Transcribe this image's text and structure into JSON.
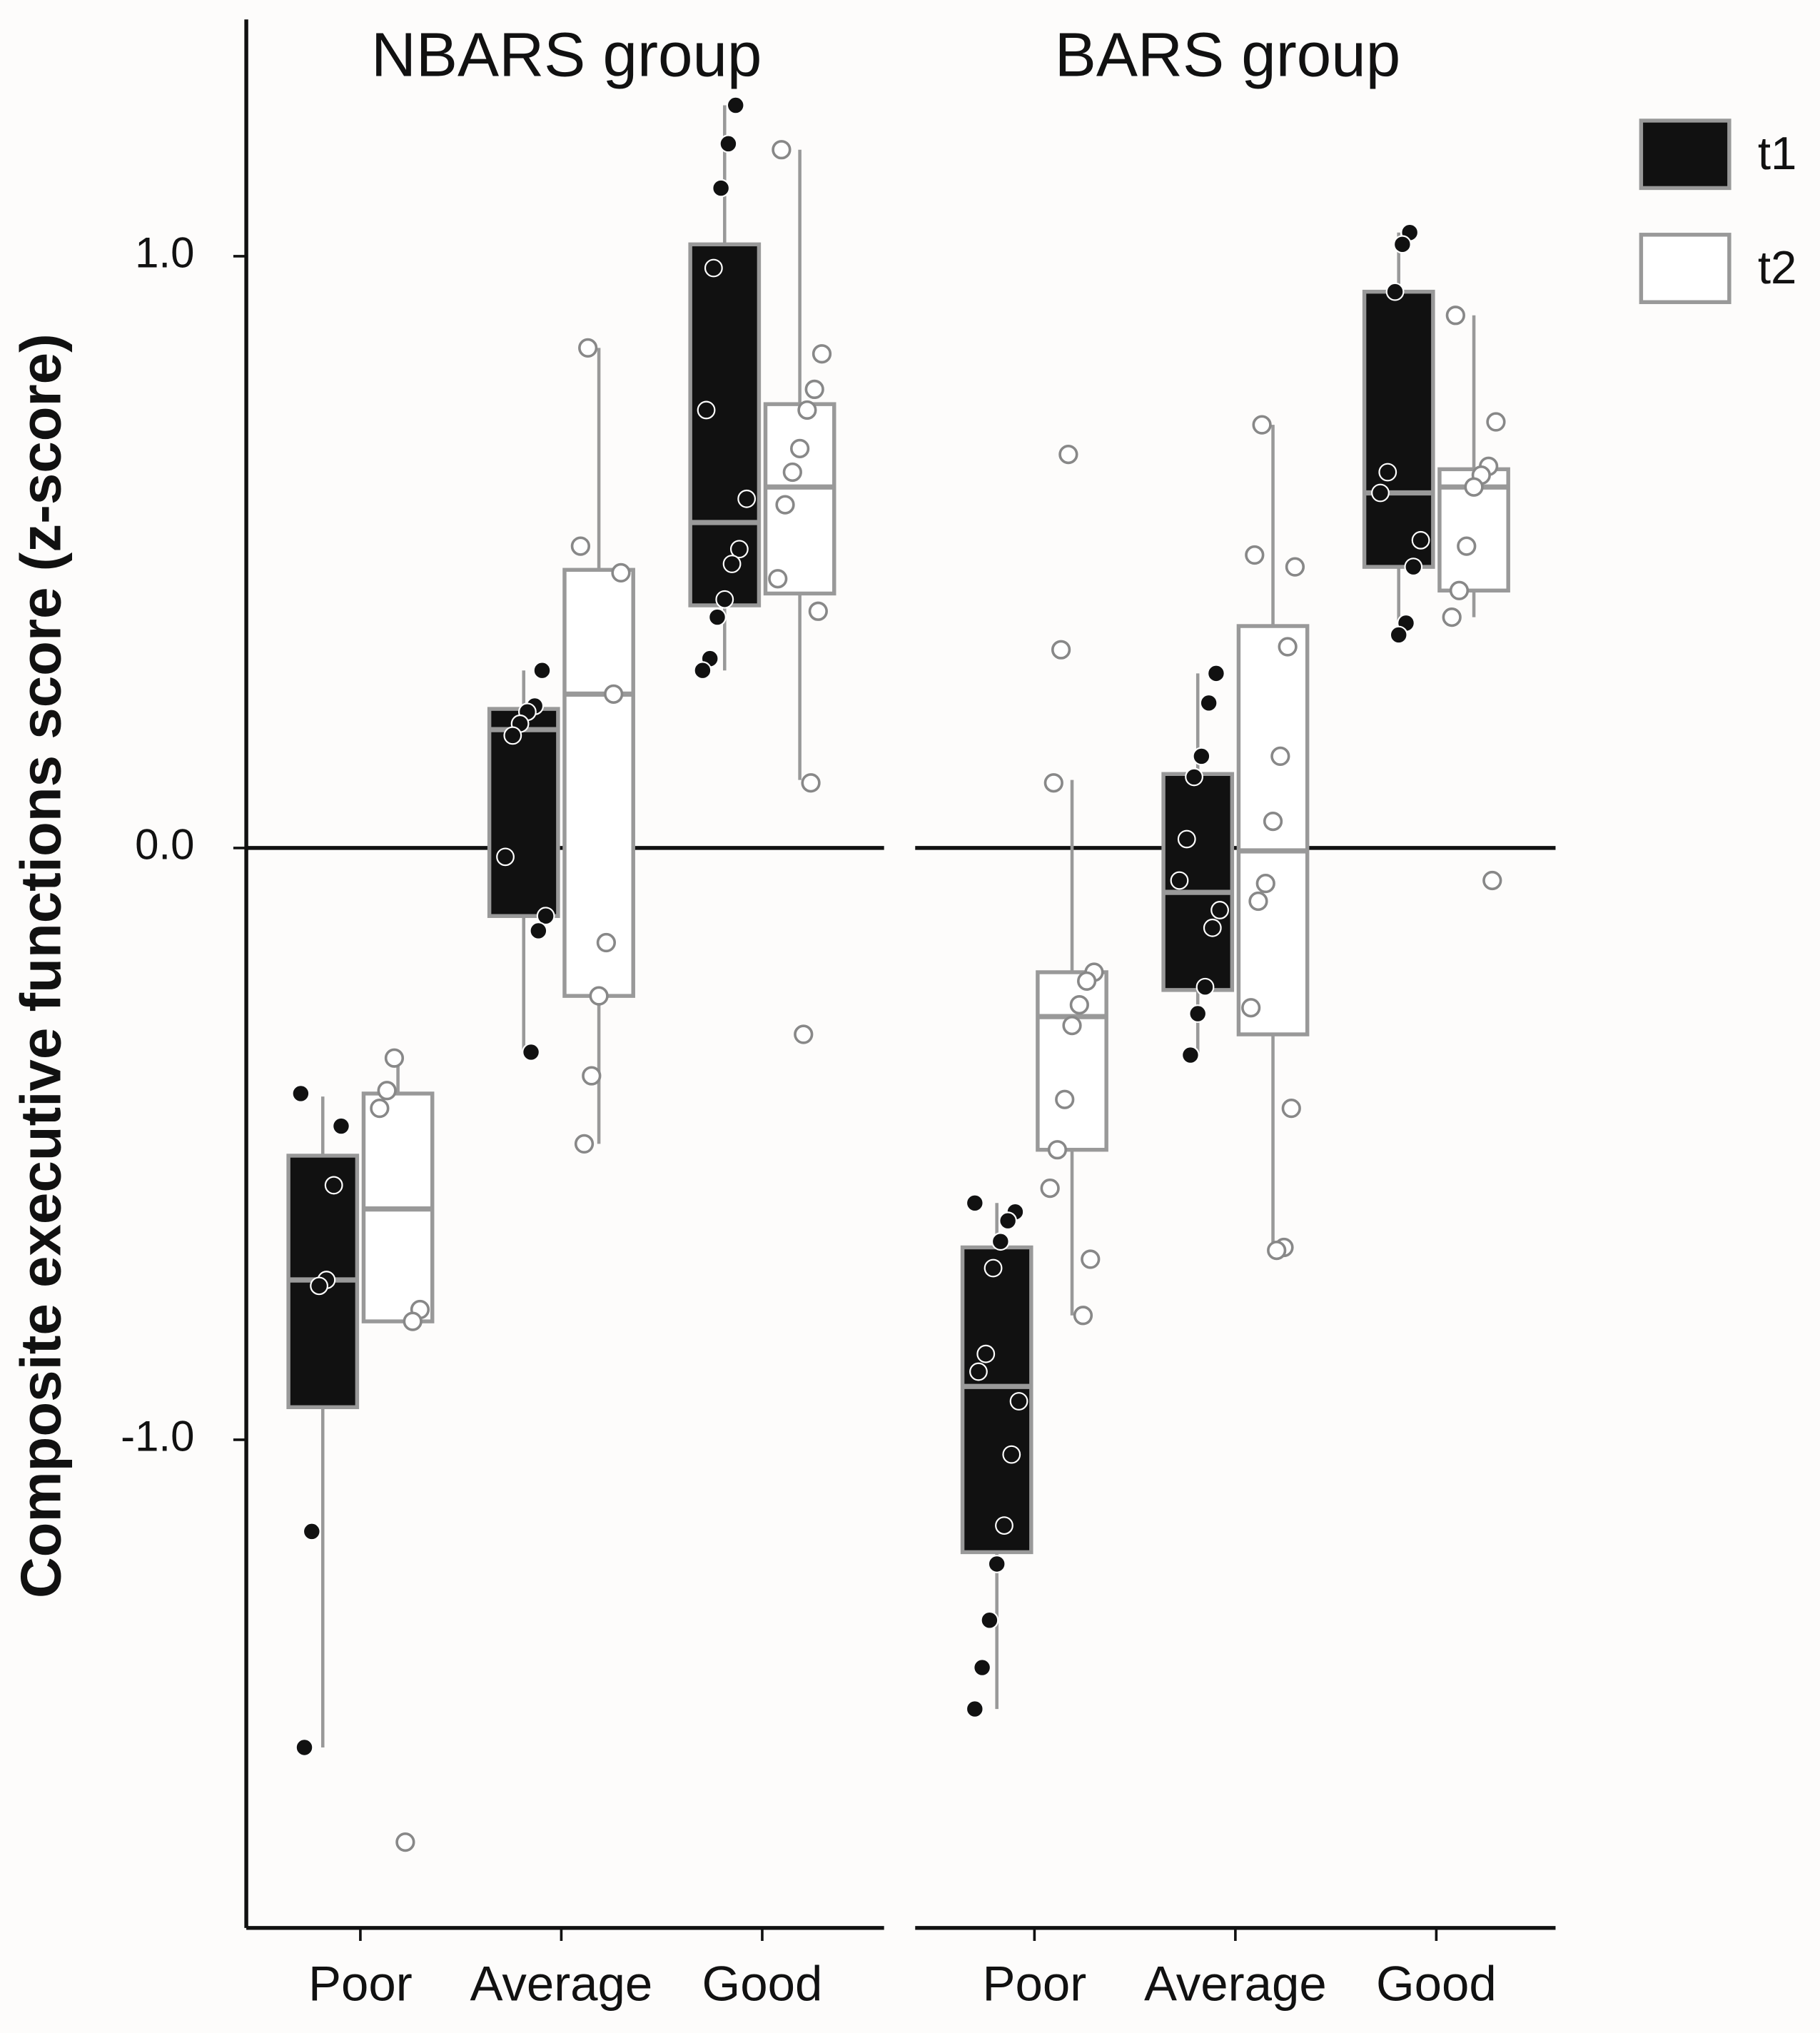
{
  "chart_data": {
    "type": "box",
    "y_label": "Composite executive functions score (z-score)",
    "ylim": [
      -1.825,
      1.4
    ],
    "yticks": [
      {
        "value": 1,
        "label": "1.0"
      },
      {
        "value": 0,
        "label": "0.0"
      },
      {
        "value": -1,
        "label": "-1.0"
      }
    ],
    "reference_line": 0,
    "series": [
      {
        "name": "t1",
        "color": "#111111",
        "edge": "#999999"
      },
      {
        "name": "t2",
        "color": "#ffffff",
        "edge": "#999999"
      }
    ],
    "panels": [
      {
        "title": "NBARS group",
        "categories": [
          "Poor",
          "Average",
          "Good"
        ],
        "series": [
          {
            "boxes": [
              {
                "min": -1.52,
                "q1": -0.945,
                "median": -0.73,
                "q3": -0.52,
                "max": -0.42,
                "points": [
                  -0.415,
                  -0.47,
                  -0.57,
                  -0.73,
                  -0.74,
                  -1.155,
                  -1.52
                ]
              },
              {
                "min": -0.345,
                "q1": -0.115,
                "median": 0.2,
                "q3": 0.235,
                "max": 0.3,
                "points": [
                  0.3,
                  0.24,
                  0.23,
                  0.21,
                  0.19,
                  -0.015,
                  -0.115,
                  -0.14,
                  -0.345
                ]
              },
              {
                "min": 0.3,
                "q1": 0.41,
                "median": 0.55,
                "q3": 1.02,
                "max": 1.255,
                "points": [
                  1.255,
                  1.19,
                  1.115,
                  0.98,
                  0.74,
                  0.59,
                  0.505,
                  0.48,
                  0.42,
                  0.39,
                  0.32,
                  0.3
                ]
              }
            ]
          },
          {
            "boxes": [
              {
                "min": -0.8,
                "q1": -0.8,
                "median": -0.61,
                "q3": -0.415,
                "max": -0.36,
                "points": [
                  -0.355,
                  -0.41,
                  -0.44,
                  -0.78,
                  -0.8,
                  -1.68
                ]
              },
              {
                "min": -0.5,
                "q1": -0.25,
                "median": 0.26,
                "q3": 0.47,
                "max": 0.845,
                "points": [
                  0.845,
                  0.51,
                  0.465,
                  0.26,
                  -0.16,
                  -0.25,
                  -0.385,
                  -0.5
                ]
              },
              {
                "min": 0.115,
                "q1": 0.43,
                "median": 0.61,
                "q3": 0.75,
                "max": 1.18,
                "points": [
                  1.18,
                  0.835,
                  0.775,
                  0.74,
                  0.675,
                  0.635,
                  0.58,
                  0.455,
                  0.4,
                  0.11,
                  -0.315
                ]
              }
            ]
          }
        ]
      },
      {
        "title": "BARS group",
        "categories": [
          "Poor",
          "Average",
          "Good"
        ],
        "series": [
          {
            "boxes": [
              {
                "min": -1.455,
                "q1": -1.19,
                "median": -0.91,
                "q3": -0.675,
                "max": -0.6,
                "points": [
                  -0.6,
                  -0.615,
                  -0.63,
                  -0.665,
                  -0.71,
                  -0.855,
                  -0.885,
                  -0.935,
                  -1.025,
                  -1.145,
                  -1.21,
                  -1.305,
                  -1.385,
                  -1.455
                ]
              },
              {
                "min": -0.35,
                "q1": -0.24,
                "median": -0.075,
                "q3": 0.125,
                "max": 0.295,
                "points": [
                  0.295,
                  0.245,
                  0.155,
                  0.12,
                  0.015,
                  -0.055,
                  -0.105,
                  -0.135,
                  -0.235,
                  -0.28,
                  -0.35
                ]
              },
              {
                "min": 0.36,
                "q1": 0.475,
                "median": 0.6,
                "q3": 0.94,
                "max": 1.04,
                "points": [
                  1.04,
                  1.02,
                  0.94,
                  0.635,
                  0.6,
                  0.52,
                  0.475,
                  0.38,
                  0.36
                ]
              }
            ]
          },
          {
            "boxes": [
              {
                "min": -0.79,
                "q1": -0.51,
                "median": -0.285,
                "q3": -0.21,
                "max": 0.115,
                "points": [
                  0.665,
                  0.335,
                  0.11,
                  -0.21,
                  -0.225,
                  -0.265,
                  -0.3,
                  -0.425,
                  -0.51,
                  -0.575,
                  -0.695,
                  -0.79
                ]
              },
              {
                "min": -0.675,
                "q1": -0.315,
                "median": -0.005,
                "q3": 0.375,
                "max": 0.715,
                "points": [
                  0.715,
                  0.495,
                  0.475,
                  0.34,
                  0.155,
                  0.045,
                  -0.06,
                  -0.09,
                  -0.27,
                  -0.44,
                  -0.675,
                  -0.68
                ]
              },
              {
                "min": 0.39,
                "q1": 0.435,
                "median": 0.61,
                "q3": 0.64,
                "max": 0.9,
                "points": [
                  0.9,
                  0.72,
                  0.645,
                  0.63,
                  0.61,
                  0.51,
                  0.435,
                  0.39,
                  -0.055
                ]
              }
            ]
          }
        ]
      }
    ]
  }
}
